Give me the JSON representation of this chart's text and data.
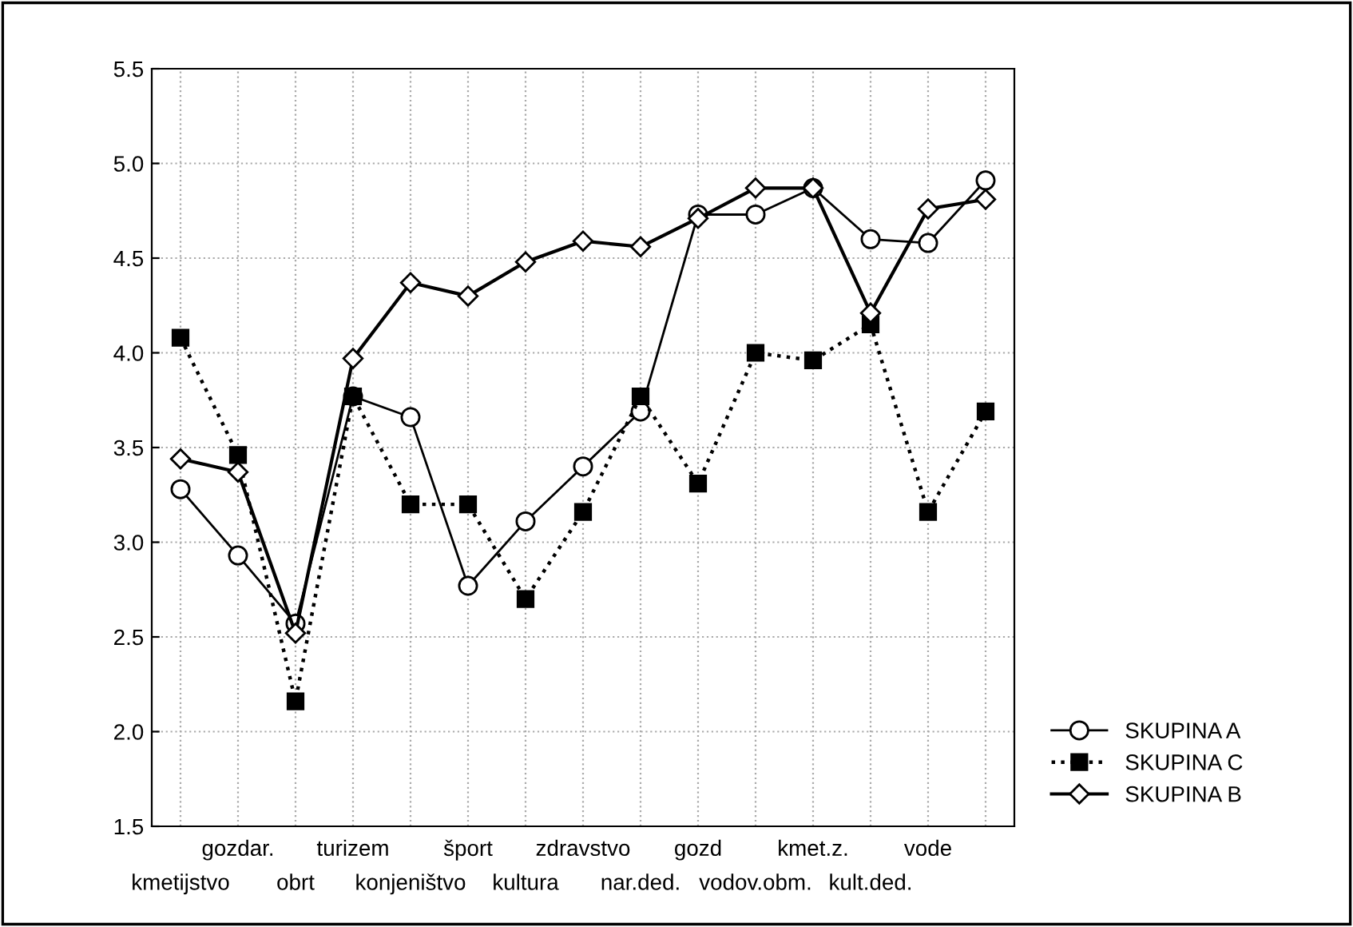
{
  "chart_data": {
    "type": "line",
    "categories": [
      "kmetijstvo",
      "gozdar.",
      "obrt",
      "turizem",
      "konjeništvo",
      "šport",
      "kultura",
      "zdravstvo",
      "nar.ded.",
      "gozd",
      "vodov.obm.",
      "kmet.z.",
      "kult.ded.",
      "vode",
      null
    ],
    "series": [
      {
        "name": "SKUPINA A",
        "color": "#000000",
        "marker": "circle",
        "line_style": "solid",
        "values": [
          3.28,
          2.93,
          2.57,
          3.77,
          3.66,
          2.77,
          3.11,
          3.4,
          3.69,
          4.73,
          4.73,
          4.87,
          4.6,
          4.58,
          4.91
        ]
      },
      {
        "name": "SKUPINA C",
        "color": "#000000",
        "marker": "square",
        "line_style": "dotted",
        "values": [
          4.08,
          3.46,
          2.16,
          3.77,
          3.2,
          3.2,
          2.7,
          3.16,
          3.77,
          3.31,
          4.0,
          3.96,
          4.15,
          3.16,
          3.69
        ]
      },
      {
        "name": "SKUPINA B",
        "color": "#000000",
        "marker": "diamond",
        "line_style": "solid",
        "values": [
          3.44,
          3.37,
          2.52,
          3.97,
          4.37,
          4.3,
          4.48,
          4.59,
          4.56,
          4.71,
          4.87,
          4.87,
          4.21,
          4.76,
          4.81
        ]
      }
    ],
    "ylim": [
      1.5,
      5.5
    ],
    "yticks": [
      1.5,
      {
        "value": 2,
        "label": "2.0"
      },
      2.5,
      {
        "value": 3,
        "label": "3.0"
      },
      3.5,
      {
        "value": 4,
        "label": "4.0"
      },
      4.5,
      {
        "value": 5,
        "label": "5.0"
      },
      5.5
    ],
    "grid": true,
    "legend": "bottom right"
  }
}
